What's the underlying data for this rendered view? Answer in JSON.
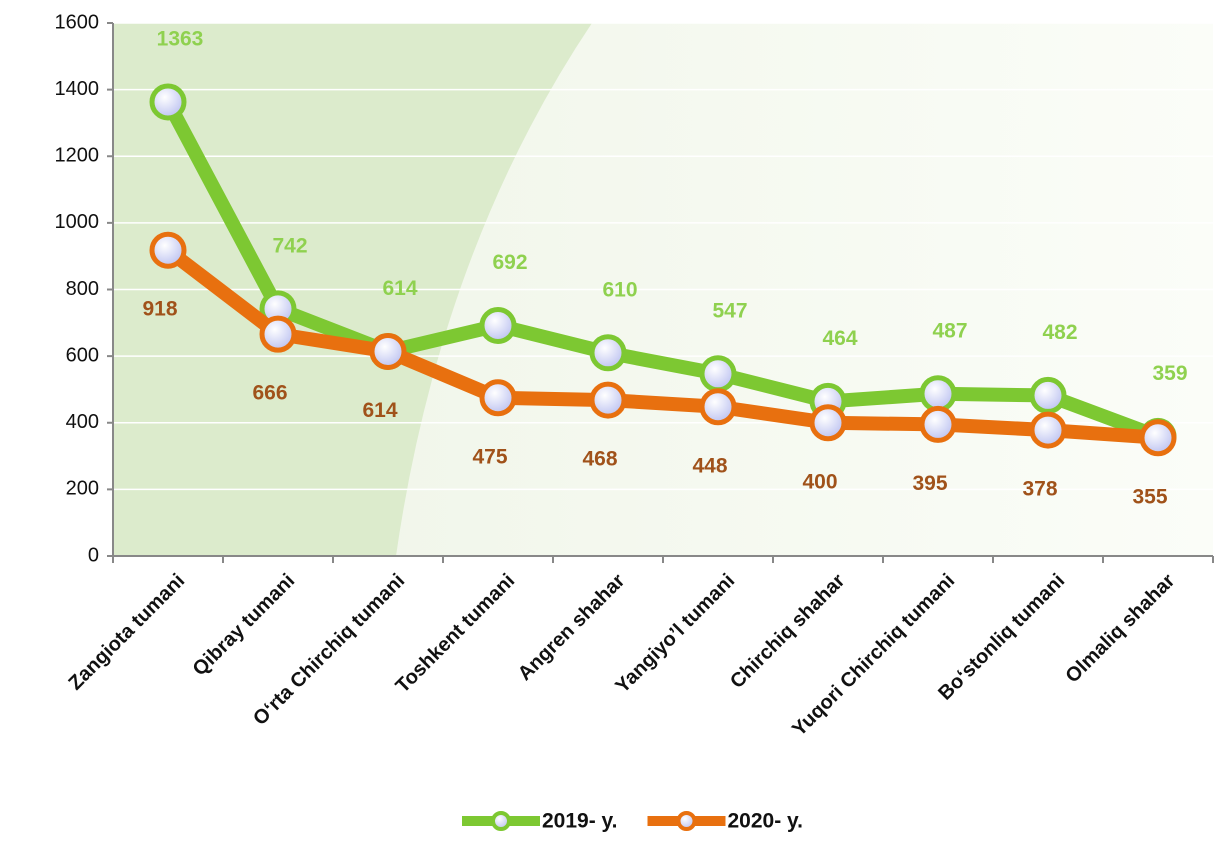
{
  "chart_data": {
    "type": "line",
    "categories": [
      "Zangiota tumani",
      "Qibray tumani",
      "O‘rta Chirchiq tumani",
      "Toshkent tumani",
      "Angren shahar",
      "Yangiyo’l tumani",
      "Chirchiq shahar",
      "Yuqori Chirchiq tumani",
      "Bo‘stonliq tumani",
      "Olmaliq shahar"
    ],
    "series": [
      {
        "name": "2019- y.",
        "color": "#7dc832",
        "label_color": "#8fd14f",
        "values": [
          1363,
          742,
          614,
          692,
          610,
          547,
          464,
          487,
          482,
          359
        ]
      },
      {
        "name": "2020- y.",
        "color": "#e8700f",
        "label_color": "#a0521a",
        "values": [
          918,
          666,
          614,
          475,
          468,
          448,
          400,
          395,
          378,
          355
        ]
      }
    ],
    "ylim": [
      0,
      1600
    ],
    "yticks": [
      0,
      200,
      400,
      600,
      800,
      1000,
      1200,
      1400,
      1600
    ],
    "grid": true,
    "legend": "bottom"
  }
}
